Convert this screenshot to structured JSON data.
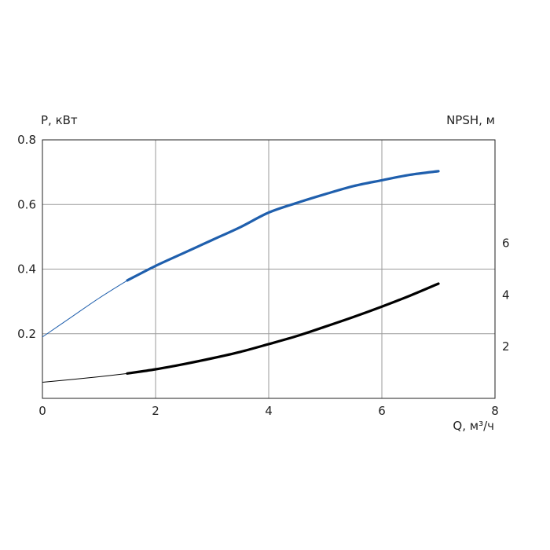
{
  "chart_data": {
    "type": "line",
    "xlabel": "Q, м³/ч",
    "ylabel_left": "P, кВт",
    "ylabel_right": "NPSH, м",
    "xlim": [
      0,
      8
    ],
    "ylim_left": [
      0,
      0.8
    ],
    "ylim_right": [
      0,
      10
    ],
    "x_ticks": [
      0,
      2,
      4,
      6,
      8
    ],
    "y_left_ticks": [
      0.2,
      0.4,
      0.6,
      0.8
    ],
    "y_right_ticks": [
      2,
      4,
      6
    ],
    "grid": true,
    "series": [
      {
        "axis": "left",
        "color": "#1f5fad",
        "x": [
          0,
          0.5,
          1.0,
          1.5,
          2.0,
          2.5,
          3.0,
          3.5,
          4.0,
          4.5,
          5.0,
          5.5,
          6.0,
          6.5,
          7.0
        ],
        "values": [
          0.19,
          0.25,
          0.31,
          0.365,
          0.41,
          0.45,
          0.49,
          0.53,
          0.575,
          0.605,
          0.632,
          0.657,
          0.675,
          0.692,
          0.703
        ],
        "operating_from_x": 1.5
      },
      {
        "axis": "left",
        "color": "#000000",
        "x": [
          0,
          0.5,
          1.0,
          1.5,
          2.0,
          2.5,
          3.0,
          3.5,
          4.0,
          4.5,
          5.0,
          5.5,
          6.0,
          6.5,
          7.0
        ],
        "values": [
          0.05,
          0.058,
          0.067,
          0.077,
          0.09,
          0.106,
          0.124,
          0.144,
          0.168,
          0.193,
          0.222,
          0.252,
          0.284,
          0.318,
          0.355
        ],
        "operating_from_x": 1.5
      }
    ]
  }
}
